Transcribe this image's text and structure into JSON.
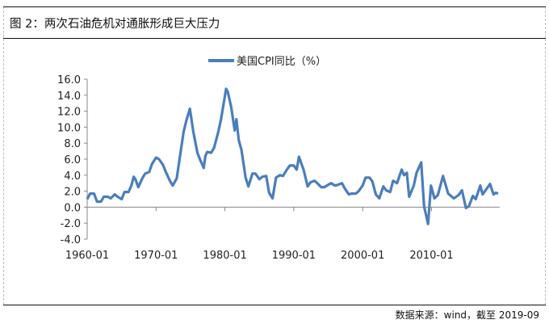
{
  "title": "图 2：两次石油危机对通胀形成巨大压力",
  "source": "数据来源：wind，截至 2019-09",
  "chart_data": {
    "type": "line",
    "title": "",
    "xlabel": "",
    "ylabel": "",
    "legend": "top-center",
    "grid": false,
    "ylim": [
      -4,
      16
    ],
    "yticks": [
      "16.0",
      "14.0",
      "12.0",
      "10.0",
      "8.0",
      "6.0",
      "4.0",
      "2.0",
      "0.0",
      "-2.0",
      "-4.0"
    ],
    "xticks": [
      "1960-01",
      "1970-01",
      "1980-01",
      "1990-01",
      "2000-01",
      "2010-01"
    ],
    "xlim": [
      "1960-01",
      "2019-09"
    ],
    "series": [
      {
        "name": "美国CPI同比（%）",
        "color": "#4a7ebb",
        "x": [
          "1960-01",
          "1960-06",
          "1961-01",
          "1961-06",
          "1962-01",
          "1962-06",
          "1963-01",
          "1963-06",
          "1964-01",
          "1964-06",
          "1965-01",
          "1965-06",
          "1966-01",
          "1966-06",
          "1966-10",
          "1967-01",
          "1967-06",
          "1968-01",
          "1968-06",
          "1969-01",
          "1969-06",
          "1970-01",
          "1970-06",
          "1971-01",
          "1971-06",
          "1972-01",
          "1972-06",
          "1973-01",
          "1973-06",
          "1974-01",
          "1974-06",
          "1974-12",
          "1975-06",
          "1976-01",
          "1976-06",
          "1976-12",
          "1977-03",
          "1977-06",
          "1978-01",
          "1978-06",
          "1979-01",
          "1979-06",
          "1980-01",
          "1980-03",
          "1980-06",
          "1980-12",
          "1981-06",
          "1981-09",
          "1982-01",
          "1982-06",
          "1983-01",
          "1983-06",
          "1984-01",
          "1984-06",
          "1985-01",
          "1985-06",
          "1986-01",
          "1986-06",
          "1986-12",
          "1987-06",
          "1988-01",
          "1988-06",
          "1989-01",
          "1989-06",
          "1990-01",
          "1990-06",
          "1990-10",
          "1991-01",
          "1991-06",
          "1992-01",
          "1992-06",
          "1993-01",
          "1993-06",
          "1994-01",
          "1994-06",
          "1995-01",
          "1995-06",
          "1996-01",
          "1996-06",
          "1997-01",
          "1997-06",
          "1998-01",
          "1998-06",
          "1999-01",
          "1999-06",
          "2000-01",
          "2000-06",
          "2001-01",
          "2001-06",
          "2001-12",
          "2002-06",
          "2003-01",
          "2003-06",
          "2004-01",
          "2004-06",
          "2005-01",
          "2005-09",
          "2006-01",
          "2006-06",
          "2006-10",
          "2007-06",
          "2007-11",
          "2008-07",
          "2008-12",
          "2009-07",
          "2009-12",
          "2010-06",
          "2010-12",
          "2011-09",
          "2012-06",
          "2013-04",
          "2013-12",
          "2014-06",
          "2015-01",
          "2015-06",
          "2016-01",
          "2016-06",
          "2017-02",
          "2017-06",
          "2018-07",
          "2019-01",
          "2019-05",
          "2019-09"
        ],
        "values": [
          1.0,
          1.7,
          1.7,
          0.7,
          0.7,
          1.3,
          1.3,
          1.1,
          1.6,
          1.3,
          1.0,
          1.9,
          1.9,
          2.7,
          3.8,
          3.5,
          2.5,
          3.6,
          4.2,
          4.4,
          5.4,
          6.2,
          6.0,
          5.3,
          4.4,
          3.3,
          2.7,
          3.6,
          6.0,
          9.4,
          10.9,
          12.3,
          9.4,
          6.8,
          5.9,
          4.9,
          6.4,
          6.9,
          6.8,
          7.4,
          9.3,
          10.9,
          13.9,
          14.8,
          14.4,
          12.5,
          9.6,
          11.0,
          8.4,
          7.1,
          3.7,
          2.6,
          4.2,
          4.2,
          3.5,
          3.8,
          3.9,
          1.8,
          1.1,
          3.7,
          4.0,
          3.9,
          4.7,
          5.2,
          5.2,
          4.7,
          6.3,
          5.7,
          4.7,
          2.6,
          3.1,
          3.3,
          3.0,
          2.5,
          2.5,
          2.8,
          3.0,
          2.7,
          2.8,
          3.0,
          2.3,
          1.6,
          1.7,
          1.7,
          2.0,
          2.7,
          3.7,
          3.7,
          3.2,
          1.6,
          1.1,
          2.6,
          2.1,
          1.9,
          3.3,
          3.0,
          4.7,
          4.0,
          4.3,
          1.3,
          2.7,
          4.3,
          5.6,
          0.1,
          -2.1,
          2.7,
          1.1,
          1.5,
          3.9,
          1.7,
          1.1,
          1.5,
          2.1,
          -0.1,
          0.1,
          1.4,
          1.0,
          2.7,
          1.6,
          2.9,
          1.6,
          1.8,
          1.7
        ]
      }
    ]
  }
}
